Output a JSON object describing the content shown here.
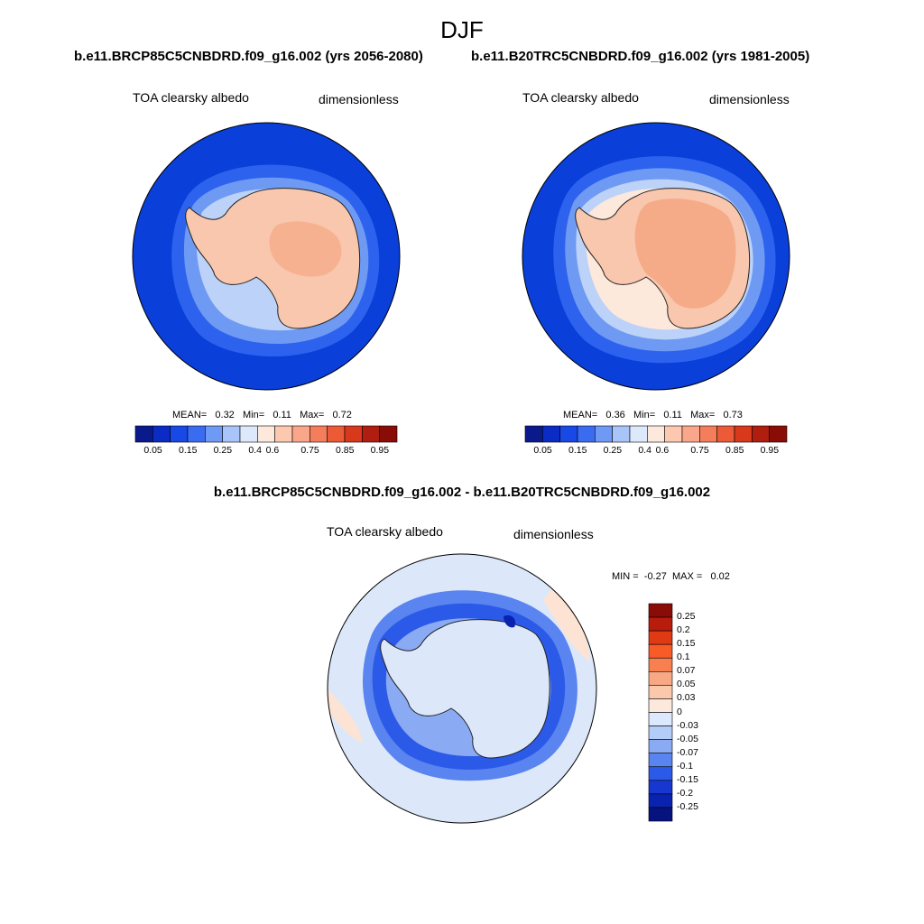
{
  "season": "DJF",
  "panels": [
    {
      "case_title": "b.e11.BRCP85C5CNBDRD.f09_g16.002 (yrs 2056-2080)",
      "variable": "TOA clearsky albedo",
      "units": "dimensionless",
      "stats": {
        "mean_label": "MEAN=",
        "mean": "0.32",
        "min_label": "Min=",
        "min": "0.11",
        "max_label": "Max=",
        "max": "0.72"
      }
    },
    {
      "case_title": "b.e11.B20TRC5CNBDRD.f09_g16.002 (yrs 1981-2005)",
      "variable": "TOA clearsky albedo",
      "units": "dimensionless",
      "stats": {
        "mean_label": "MEAN=",
        "mean": "0.36",
        "min_label": "Min=",
        "min": "0.11",
        "max_label": "Max=",
        "max": "0.73"
      }
    }
  ],
  "diff": {
    "title": "b.e11.BRCP85C5CNBDRD.f09_g16.002 - b.e11.B20TRC5CNBDRD.f09_g16.002",
    "variable": "TOA clearsky albedo",
    "units": "dimensionless",
    "minmax": {
      "min_label": "MIN =",
      "min": "-0.27",
      "max_label": "MAX =",
      "max": "0.02"
    }
  },
  "abs_colorbar": {
    "labels": [
      "0.05",
      "0.15",
      "0.25",
      "0.4",
      "0.6",
      "0.75",
      "0.85",
      "0.95"
    ],
    "colors": [
      "#0a1a8c",
      "#0a2cc4",
      "#1848e6",
      "#3a6cf2",
      "#6e9af5",
      "#a8c4f8",
      "#dce8fc",
      "#fde8dc",
      "#fcc8b0",
      "#f9a68a",
      "#f47e5c",
      "#ec5a36",
      "#d8381c",
      "#b01e10",
      "#8a0c06"
    ]
  },
  "diff_colorbar": {
    "labels": [
      "0.25",
      "0.2",
      "0.15",
      "0.1",
      "0.07",
      "0.05",
      "0.03",
      "0",
      "-0.03",
      "-0.05",
      "-0.07",
      "-0.1",
      "-0.15",
      "-0.2",
      "-0.25"
    ],
    "colors": [
      "#8a0c06",
      "#b81c0c",
      "#e03a14",
      "#f85a28",
      "#f88050",
      "#f8a882",
      "#fcc8ac",
      "#fde8dc",
      "#dce8fc",
      "#b4ccf8",
      "#8aaaf4",
      "#5a84f0",
      "#2c5ae8",
      "#1638d0",
      "#0a22b0",
      "#06127e"
    ]
  },
  "colors": {
    "ocean_dark": "#0a3fd9",
    "ocean_mid": "#2d62ee",
    "ocean_light": "#6f9af3",
    "ice_pale": "#bcd2f8",
    "land_peach": "#f8c7ad",
    "land_orange": "#f5ab88",
    "diff_bg": "#dce8fa",
    "diff_pos": "#fde3d3"
  }
}
